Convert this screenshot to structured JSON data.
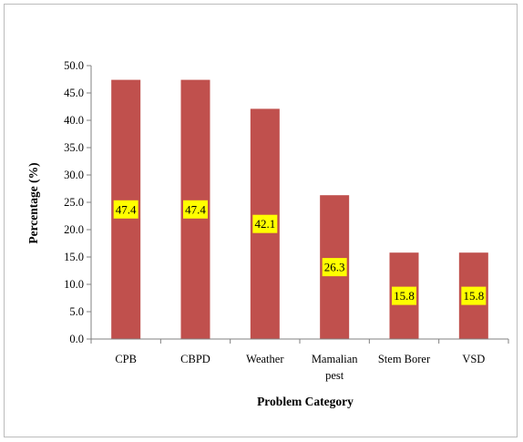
{
  "chart_data": {
    "type": "bar",
    "categories": [
      [
        "CPB"
      ],
      [
        "CBPD"
      ],
      [
        "Weather"
      ],
      [
        "Mamalian",
        "pest"
      ],
      [
        "Stem Borer"
      ],
      [
        "VSD"
      ]
    ],
    "values": [
      47.4,
      47.4,
      42.1,
      26.3,
      15.8,
      15.8
    ],
    "data_labels": [
      "47.4",
      "47.4",
      "42.1",
      "26.3",
      "15.8",
      "15.8"
    ],
    "xlabel": "Problem Category",
    "ylabel": "Percentage (%)",
    "ylim": [
      0,
      50
    ],
    "yticks": [
      "0.0",
      "5.0",
      "10.0",
      "15.0",
      "20.0",
      "25.0",
      "30.0",
      "35.0",
      "40.0",
      "45.0",
      "50.0"
    ],
    "grid": false,
    "legend": "none",
    "colors": {
      "bar": "#c0504d",
      "label_background": "#ffff00"
    }
  }
}
